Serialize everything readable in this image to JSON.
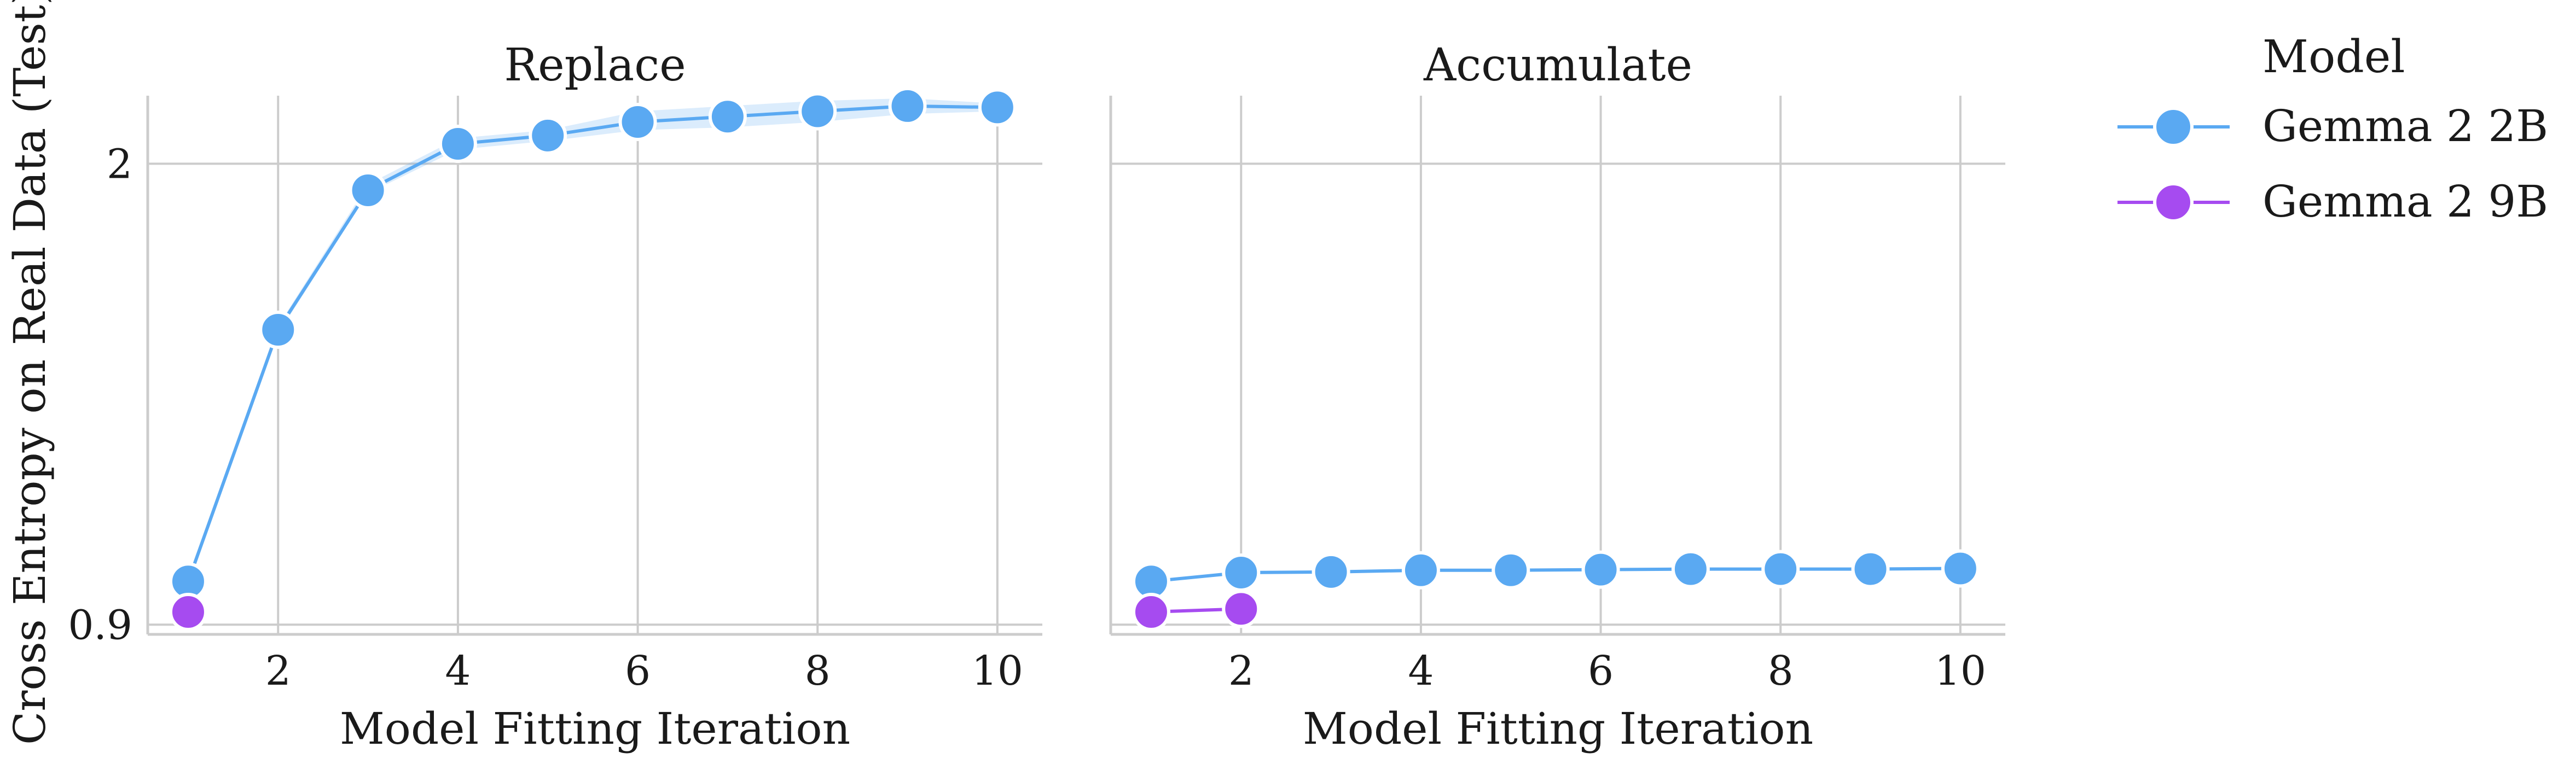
{
  "figure": {
    "ylabel": "Cross Entropy on Real Data (Test)",
    "legend": {
      "title": "Model",
      "position": "right",
      "entries": [
        {
          "label": "Gemma 2 2B",
          "color": "#5aa9f2"
        },
        {
          "label": "Gemma 2 9B",
          "color": "#a64bf0"
        }
      ]
    }
  },
  "chart_data": [
    {
      "type": "line",
      "title": "Replace",
      "xlabel": "Model Fitting Iteration",
      "ylabel": "Cross Entropy on Real Data (Test)",
      "y_scale": "log",
      "ylim": [
        0.885,
        2.25
      ],
      "xlim": [
        0.55,
        10.5
      ],
      "xticks": [
        2,
        4,
        6,
        8,
        10
      ],
      "yticks": [
        {
          "value": 0.9,
          "label": "0.9"
        },
        {
          "value": 2,
          "label": "2"
        }
      ],
      "grid": true,
      "series": [
        {
          "name": "Gemma 2 2B",
          "color": "#5aa9f2",
          "x": [
            1,
            2,
            3,
            4,
            5,
            6,
            7,
            8,
            9,
            10
          ],
          "y": [
            0.97,
            1.5,
            1.91,
            2.07,
            2.1,
            2.15,
            2.17,
            2.19,
            2.21,
            2.205
          ],
          "band": [
            [
              0.965,
              0.975
            ],
            [
              1.49,
              1.51
            ],
            [
              1.9,
              1.93
            ],
            [
              2.05,
              2.09
            ],
            [
              2.08,
              2.12
            ],
            [
              2.12,
              2.19
            ],
            [
              2.13,
              2.21
            ],
            [
              2.15,
              2.23
            ],
            [
              2.18,
              2.24
            ],
            [
              2.19,
              2.22
            ]
          ]
        },
        {
          "name": "Gemma 2 9B",
          "color": "#a64bf0",
          "x": [
            1
          ],
          "y": [
            0.92
          ]
        }
      ]
    },
    {
      "type": "line",
      "title": "Accumulate",
      "xlabel": "Model Fitting Iteration",
      "ylabel": "",
      "y_scale": "log",
      "ylim": [
        0.885,
        2.25
      ],
      "xlim": [
        0.55,
        10.5
      ],
      "xticks": [
        2,
        4,
        6,
        8,
        10
      ],
      "yticks": [
        {
          "value": 0.9,
          "label": ""
        },
        {
          "value": 2,
          "label": ""
        }
      ],
      "grid": true,
      "series": [
        {
          "name": "Gemma 2 2B",
          "color": "#5aa9f2",
          "x": [
            1,
            2,
            3,
            4,
            5,
            6,
            7,
            8,
            9,
            10
          ],
          "y": [
            0.97,
            0.985,
            0.986,
            0.989,
            0.989,
            0.99,
            0.991,
            0.991,
            0.991,
            0.992
          ]
        },
        {
          "name": "Gemma 2 9B",
          "color": "#a64bf0",
          "x": [
            1,
            2
          ],
          "y": [
            0.92,
            0.925
          ]
        }
      ]
    }
  ]
}
